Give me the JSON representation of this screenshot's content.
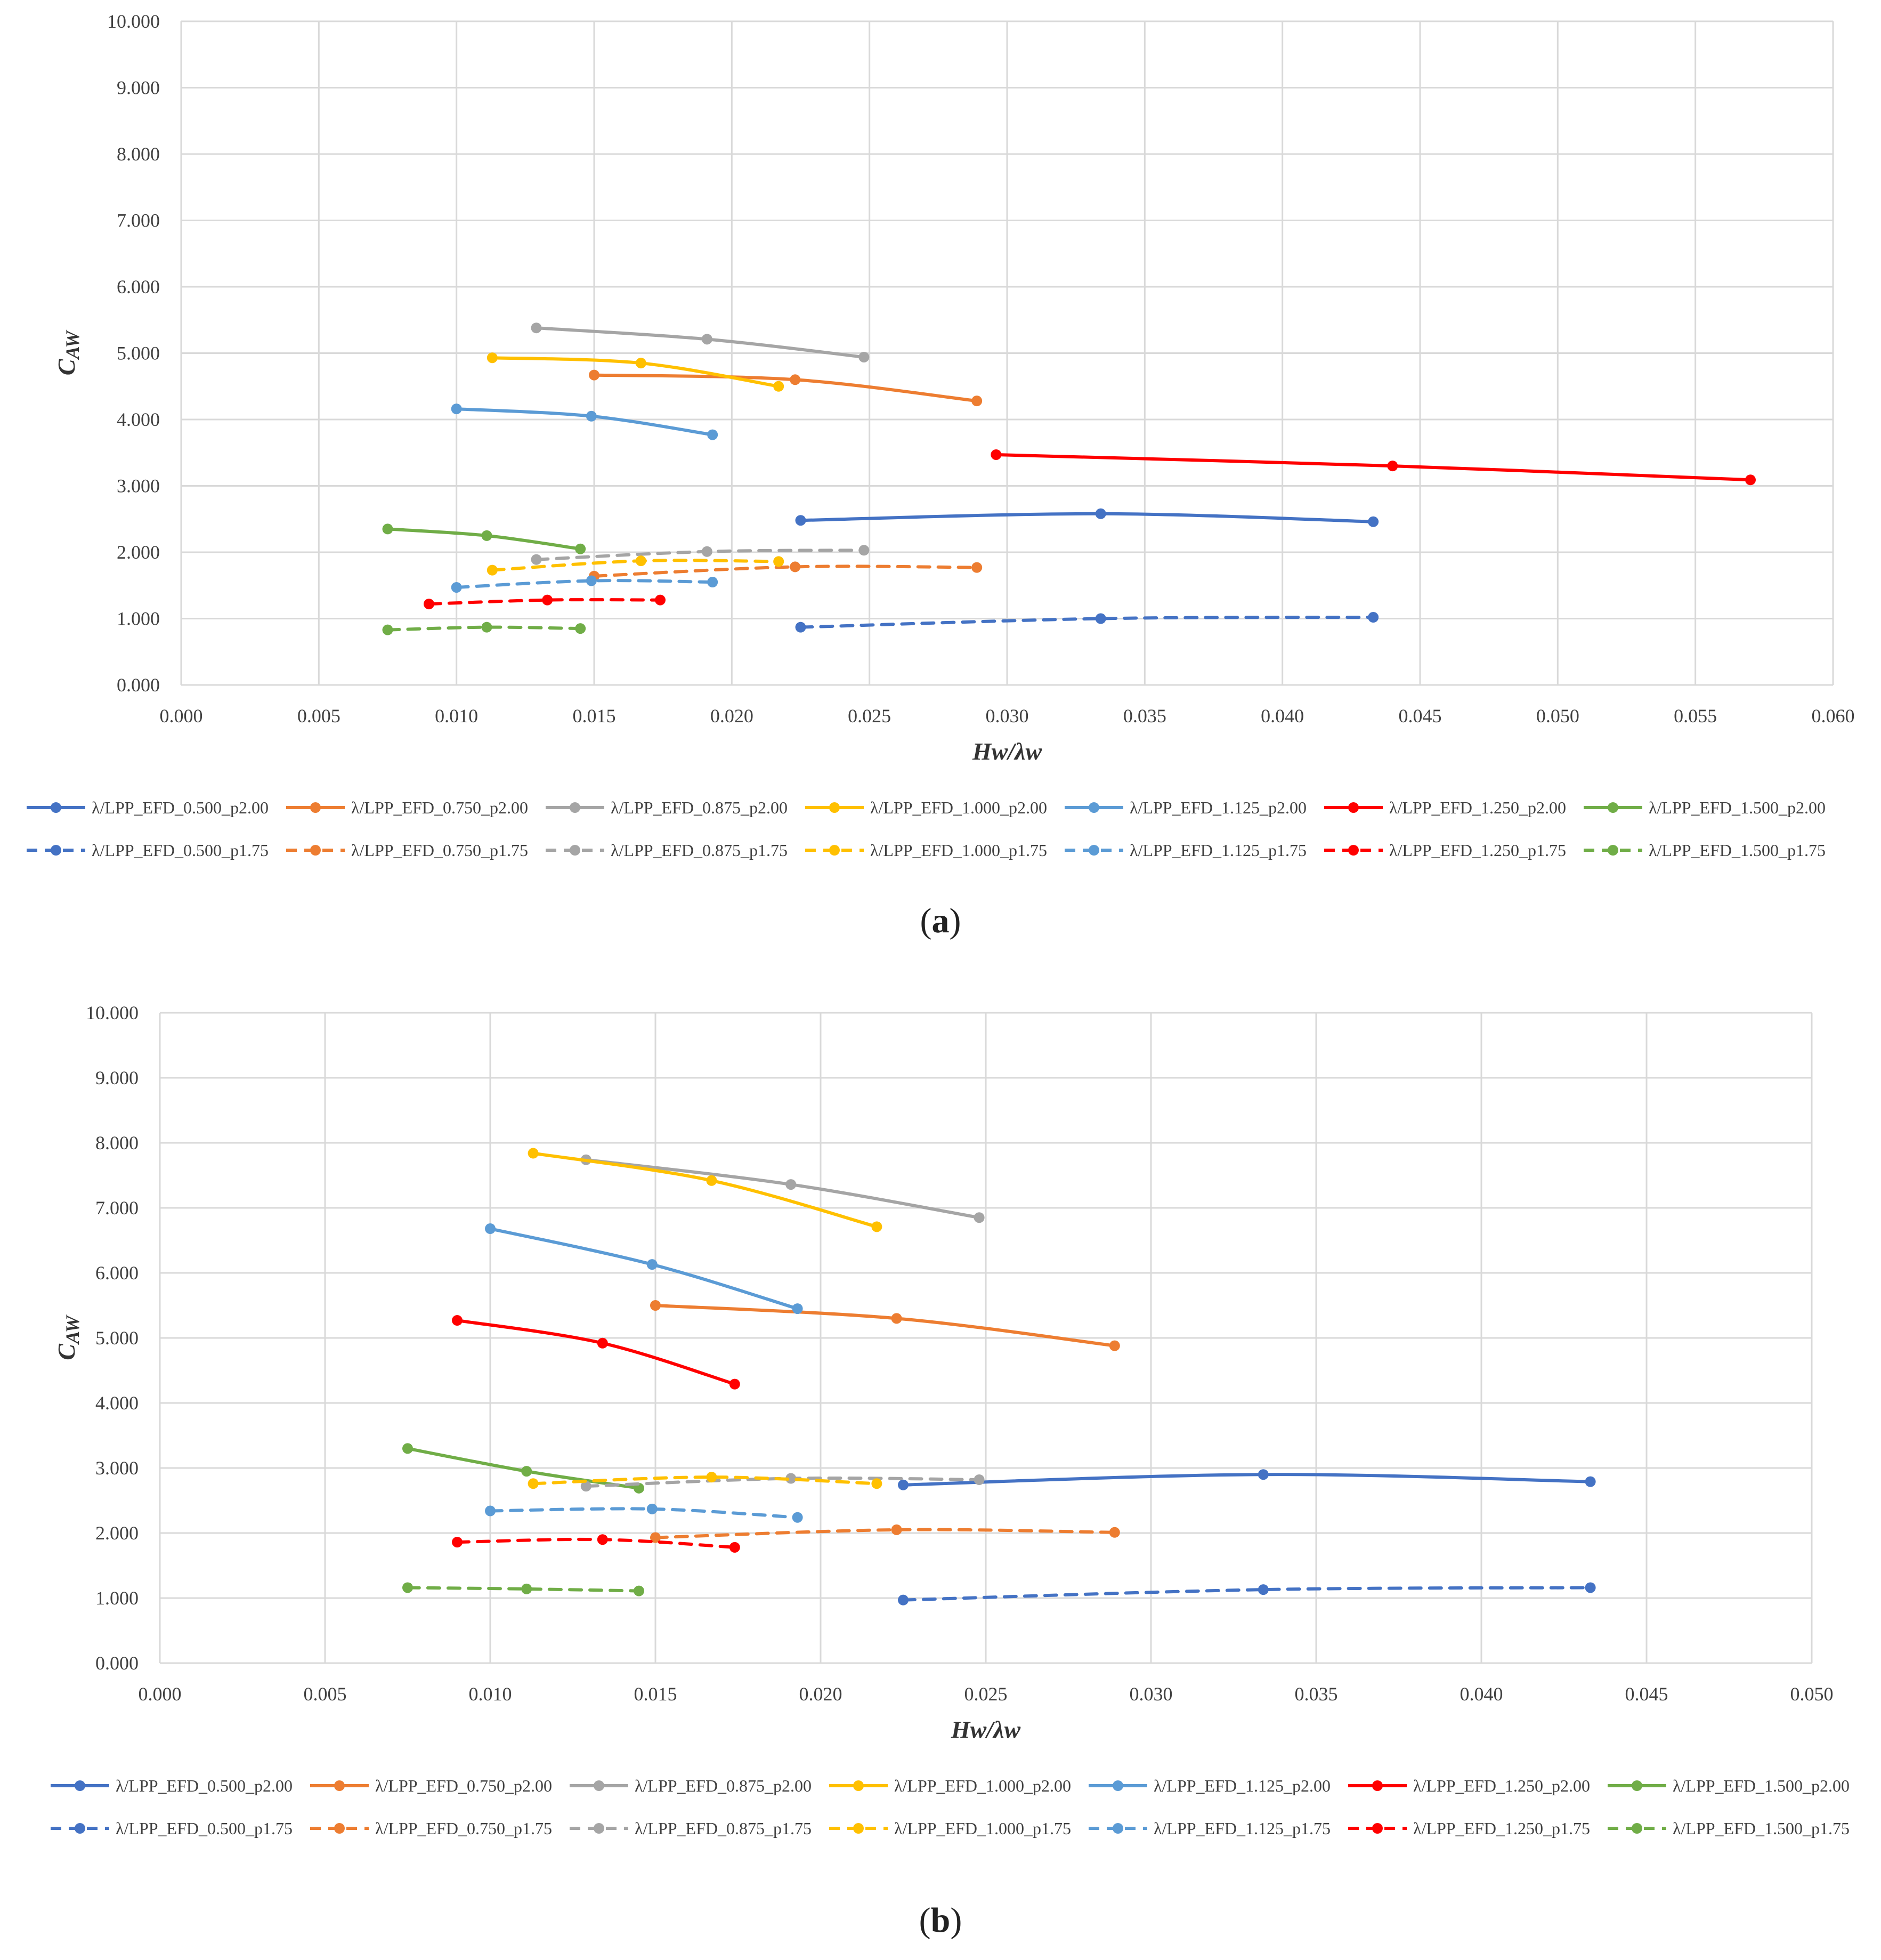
{
  "chart_data": [
    {
      "panel": "a",
      "type": "line",
      "caption": "a",
      "xlabel": "Hw/λw",
      "ylabel": "CAW",
      "xlim": [
        0,
        0.06
      ],
      "ylim": [
        0,
        10
      ],
      "xticks": [
        "0.000",
        "0.005",
        "0.010",
        "0.015",
        "0.020",
        "0.025",
        "0.030",
        "0.035",
        "0.040",
        "0.045",
        "0.050",
        "0.055",
        "0.060"
      ],
      "yticks": [
        "0.000",
        "1.000",
        "2.000",
        "3.000",
        "4.000",
        "5.000",
        "6.000",
        "7.000",
        "8.000",
        "9.000",
        "10.000"
      ],
      "grid": true,
      "legend_position": "bottom",
      "series": [
        {
          "name": "λ/LPP_EFD_0.500_p2.00",
          "color": "#4472c4",
          "dash": false,
          "x": [
            0.0225,
            0.0334,
            0.0433
          ],
          "y": [
            2.48,
            2.58,
            2.46
          ]
        },
        {
          "name": "λ/LPP_EFD_0.750_p2.00",
          "color": "#ed7d31",
          "dash": false,
          "x": [
            0.015,
            0.0223,
            0.0289
          ],
          "y": [
            4.67,
            4.6,
            4.28
          ]
        },
        {
          "name": "λ/LPP_EFD_0.875_p2.00",
          "color": "#a5a5a5",
          "dash": false,
          "x": [
            0.0129,
            0.0191,
            0.0248
          ],
          "y": [
            5.38,
            5.21,
            4.94
          ]
        },
        {
          "name": "λ/LPP_EFD_1.000_p2.00",
          "color": "#ffc000",
          "dash": false,
          "x": [
            0.0113,
            0.0167,
            0.0217
          ],
          "y": [
            4.93,
            4.85,
            4.5
          ]
        },
        {
          "name": "λ/LPP_EFD_1.125_p2.00",
          "color": "#5b9bd5",
          "dash": false,
          "x": [
            0.01,
            0.0149,
            0.0193
          ],
          "y": [
            4.16,
            4.05,
            3.77
          ]
        },
        {
          "name": "λ/LPP_EFD_1.250_p2.00",
          "color": "#ff0000",
          "dash": false,
          "x": [
            0.0296,
            0.044,
            0.057
          ],
          "y": [
            3.47,
            3.3,
            3.09
          ]
        },
        {
          "name": "λ/LPP_EFD_1.500_p2.00",
          "color": "#70ad47",
          "dash": false,
          "x": [
            0.0075,
            0.0111,
            0.0145
          ],
          "y": [
            2.35,
            2.25,
            2.05
          ]
        },
        {
          "name": "λ/LPP_EFD_0.500_p1.75",
          "color": "#4472c4",
          "dash": true,
          "x": [
            0.0225,
            0.0334,
            0.0433
          ],
          "y": [
            0.87,
            1.0,
            1.02
          ]
        },
        {
          "name": "λ/LPP_EFD_0.750_p1.75",
          "color": "#ed7d31",
          "dash": true,
          "x": [
            0.015,
            0.0223,
            0.0289
          ],
          "y": [
            1.64,
            1.78,
            1.77
          ]
        },
        {
          "name": "λ/LPP_EFD_0.875_p1.75",
          "color": "#a5a5a5",
          "dash": true,
          "x": [
            0.0129,
            0.0191,
            0.0248
          ],
          "y": [
            1.89,
            2.01,
            2.03
          ]
        },
        {
          "name": "λ/LPP_EFD_1.000_p1.75",
          "color": "#ffc000",
          "dash": true,
          "x": [
            0.0113,
            0.0167,
            0.0217
          ],
          "y": [
            1.73,
            1.87,
            1.86
          ]
        },
        {
          "name": "λ/LPP_EFD_1.125_p1.75",
          "color": "#5b9bd5",
          "dash": true,
          "x": [
            0.01,
            0.0149,
            0.0193
          ],
          "y": [
            1.47,
            1.57,
            1.55
          ]
        },
        {
          "name": "λ/LPP_EFD_1.250_p1.75",
          "color": "#ff0000",
          "dash": true,
          "x": [
            0.009,
            0.0133,
            0.0174
          ],
          "y": [
            1.22,
            1.28,
            1.28
          ]
        },
        {
          "name": "λ/LPP_EFD_1.500_p1.75",
          "color": "#70ad47",
          "dash": true,
          "x": [
            0.0075,
            0.0111,
            0.0145
          ],
          "y": [
            0.83,
            0.87,
            0.85
          ]
        }
      ]
    },
    {
      "panel": "b",
      "type": "line",
      "caption": "b",
      "xlabel": "Hw/λw",
      "ylabel": "CAW",
      "xlim": [
        0,
        0.05
      ],
      "ylim": [
        0,
        10
      ],
      "xticks": [
        "0.000",
        "0.005",
        "0.010",
        "0.015",
        "0.020",
        "0.025",
        "0.030",
        "0.035",
        "0.040",
        "0.045",
        "0.050"
      ],
      "yticks": [
        "0.000",
        "1.000",
        "2.000",
        "3.000",
        "4.000",
        "5.000",
        "6.000",
        "7.000",
        "8.000",
        "9.000",
        "10.000"
      ],
      "grid": true,
      "legend_position": "bottom",
      "series": [
        {
          "name": "λ/LPP_EFD_0.500_p2.00",
          "color": "#4472c4",
          "dash": false,
          "x": [
            0.0225,
            0.0334,
            0.0433
          ],
          "y": [
            2.74,
            2.9,
            2.79
          ]
        },
        {
          "name": "λ/LPP_EFD_0.750_p2.00",
          "color": "#ed7d31",
          "dash": false,
          "x": [
            0.015,
            0.0223,
            0.0289
          ],
          "y": [
            5.5,
            5.3,
            4.88
          ]
        },
        {
          "name": "λ/LPP_EFD_0.875_p2.00",
          "color": "#a5a5a5",
          "dash": false,
          "x": [
            0.0129,
            0.0191,
            0.0248
          ],
          "y": [
            7.74,
            7.36,
            6.85
          ]
        },
        {
          "name": "λ/LPP_EFD_1.000_p2.00",
          "color": "#ffc000",
          "dash": false,
          "x": [
            0.0113,
            0.0167,
            0.0217
          ],
          "y": [
            7.84,
            7.42,
            6.71
          ]
        },
        {
          "name": "λ/LPP_EFD_1.125_p2.00",
          "color": "#5b9bd5",
          "dash": false,
          "x": [
            0.01,
            0.0149,
            0.0193
          ],
          "y": [
            6.68,
            6.13,
            5.45
          ]
        },
        {
          "name": "λ/LPP_EFD_1.250_p2.00",
          "color": "#ff0000",
          "dash": false,
          "x": [
            0.009,
            0.0134,
            0.0174
          ],
          "y": [
            5.27,
            4.92,
            4.29
          ]
        },
        {
          "name": "λ/LPP_EFD_1.500_p2.00",
          "color": "#70ad47",
          "dash": false,
          "x": [
            0.0075,
            0.0111,
            0.0145
          ],
          "y": [
            3.3,
            2.95,
            2.69
          ]
        },
        {
          "name": "λ/LPP_EFD_0.500_p1.75",
          "color": "#4472c4",
          "dash": true,
          "x": [
            0.0225,
            0.0334,
            0.0433
          ],
          "y": [
            0.97,
            1.13,
            1.16
          ]
        },
        {
          "name": "λ/LPP_EFD_0.750_p1.75",
          "color": "#ed7d31",
          "dash": true,
          "x": [
            0.015,
            0.0223,
            0.0289
          ],
          "y": [
            1.93,
            2.05,
            2.01
          ]
        },
        {
          "name": "λ/LPP_EFD_0.875_p1.75",
          "color": "#a5a5a5",
          "dash": true,
          "x": [
            0.0129,
            0.0191,
            0.0248
          ],
          "y": [
            2.72,
            2.84,
            2.82
          ]
        },
        {
          "name": "λ/LPP_EFD_1.000_p1.75",
          "color": "#ffc000",
          "dash": true,
          "x": [
            0.0113,
            0.0167,
            0.0217
          ],
          "y": [
            2.76,
            2.86,
            2.76
          ]
        },
        {
          "name": "λ/LPP_EFD_1.125_p1.75",
          "color": "#5b9bd5",
          "dash": true,
          "x": [
            0.01,
            0.0149,
            0.0193
          ],
          "y": [
            2.34,
            2.37,
            2.24
          ]
        },
        {
          "name": "λ/LPP_EFD_1.250_p1.75",
          "color": "#ff0000",
          "dash": true,
          "x": [
            0.009,
            0.0134,
            0.0174
          ],
          "y": [
            1.86,
            1.9,
            1.78
          ]
        },
        {
          "name": "λ/LPP_EFD_1.500_p1.75",
          "color": "#70ad47",
          "dash": true,
          "x": [
            0.0075,
            0.0111,
            0.0145
          ],
          "y": [
            1.16,
            1.14,
            1.11
          ]
        }
      ]
    }
  ]
}
